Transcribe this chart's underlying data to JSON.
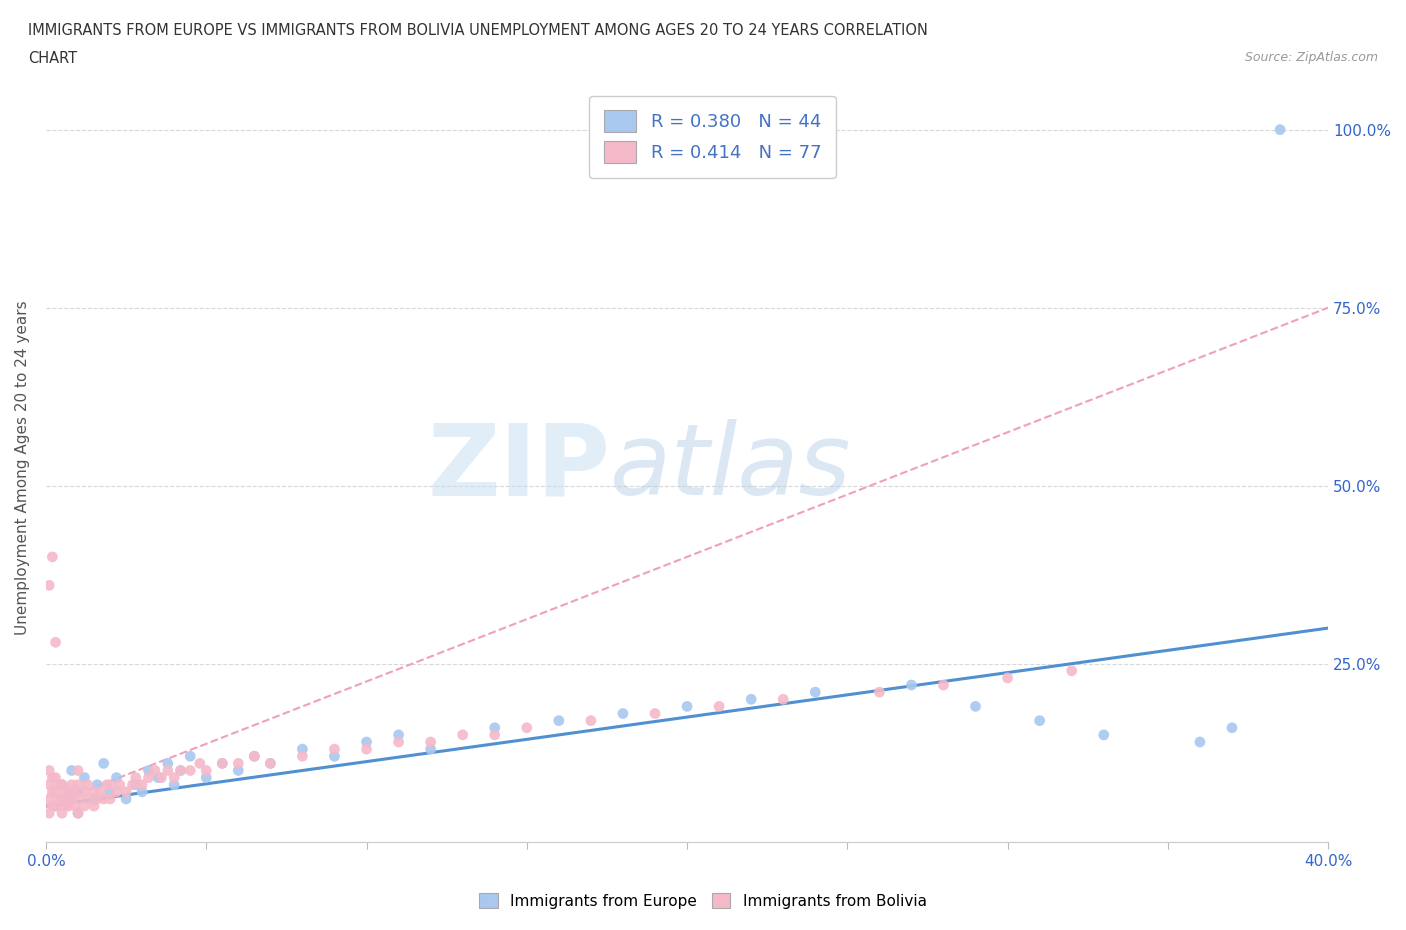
{
  "title_line1": "IMMIGRANTS FROM EUROPE VS IMMIGRANTS FROM BOLIVIA UNEMPLOYMENT AMONG AGES 20 TO 24 YEARS CORRELATION",
  "title_line2": "CHART",
  "source_text": "Source: ZipAtlas.com",
  "ylabel": "Unemployment Among Ages 20 to 24 years",
  "xlim": [
    0.0,
    0.4
  ],
  "ylim": [
    0.0,
    1.05
  ],
  "xtick_positions": [
    0.0,
    0.05,
    0.1,
    0.15,
    0.2,
    0.25,
    0.3,
    0.35,
    0.4
  ],
  "ytick_positions": [
    0.0,
    0.25,
    0.5,
    0.75,
    1.0
  ],
  "xtick_labels": [
    "0.0%",
    "",
    "",
    "",
    "",
    "",
    "",
    "",
    "40.0%"
  ],
  "ytick_labels_right": [
    "",
    "25.0%",
    "50.0%",
    "75.0%",
    "100.0%"
  ],
  "europe_R": 0.38,
  "europe_N": 44,
  "bolivia_R": 0.414,
  "bolivia_N": 77,
  "europe_color": "#a8c8f0",
  "bolivia_color": "#f5b8c8",
  "europe_line_color": "#5090d0",
  "bolivia_line_color": "#f0a0b8",
  "watermark_zip_color": "#c8dff5",
  "watermark_atlas_color": "#b8d4e8",
  "background_color": "#ffffff",
  "grid_color": "#d8d8d8",
  "tick_label_color": "#3366cc",
  "ylabel_color": "#555555",
  "title_color": "#333333",
  "source_color": "#999999",
  "legend_text_color": "#4472c4",
  "eu_scatter_x": [
    0.003,
    0.005,
    0.007,
    0.008,
    0.01,
    0.01,
    0.012,
    0.015,
    0.016,
    0.018,
    0.02,
    0.022,
    0.025,
    0.028,
    0.03,
    0.032,
    0.035,
    0.038,
    0.04,
    0.042,
    0.045,
    0.05,
    0.055,
    0.06,
    0.065,
    0.07,
    0.08,
    0.09,
    0.1,
    0.11,
    0.12,
    0.14,
    0.16,
    0.18,
    0.2,
    0.22,
    0.24,
    0.27,
    0.29,
    0.31,
    0.33,
    0.36,
    0.37,
    0.385
  ],
  "eu_scatter_y": [
    0.05,
    0.08,
    0.06,
    0.1,
    0.04,
    0.07,
    0.09,
    0.06,
    0.08,
    0.11,
    0.07,
    0.09,
    0.06,
    0.08,
    0.07,
    0.1,
    0.09,
    0.11,
    0.08,
    0.1,
    0.12,
    0.09,
    0.11,
    0.1,
    0.12,
    0.11,
    0.13,
    0.12,
    0.14,
    0.15,
    0.13,
    0.16,
    0.17,
    0.18,
    0.19,
    0.2,
    0.21,
    0.22,
    0.19,
    0.17,
    0.15,
    0.14,
    0.16,
    1.0
  ],
  "bo_scatter_x": [
    0.001,
    0.001,
    0.001,
    0.001,
    0.001,
    0.002,
    0.002,
    0.002,
    0.002,
    0.003,
    0.003,
    0.003,
    0.003,
    0.004,
    0.004,
    0.005,
    0.005,
    0.005,
    0.006,
    0.006,
    0.007,
    0.007,
    0.008,
    0.008,
    0.009,
    0.009,
    0.01,
    0.01,
    0.01,
    0.01,
    0.012,
    0.012,
    0.013,
    0.013,
    0.015,
    0.015,
    0.016,
    0.017,
    0.018,
    0.019,
    0.02,
    0.02,
    0.022,
    0.023,
    0.025,
    0.027,
    0.028,
    0.03,
    0.032,
    0.034,
    0.036,
    0.038,
    0.04,
    0.042,
    0.045,
    0.048,
    0.05,
    0.055,
    0.06,
    0.065,
    0.07,
    0.08,
    0.09,
    0.1,
    0.11,
    0.12,
    0.13,
    0.14,
    0.15,
    0.17,
    0.19,
    0.21,
    0.23,
    0.26,
    0.28,
    0.3,
    0.32
  ],
  "bo_scatter_y": [
    0.04,
    0.06,
    0.08,
    0.1,
    0.36,
    0.05,
    0.07,
    0.09,
    0.4,
    0.05,
    0.07,
    0.09,
    0.28,
    0.06,
    0.08,
    0.04,
    0.06,
    0.08,
    0.05,
    0.07,
    0.05,
    0.07,
    0.06,
    0.08,
    0.05,
    0.07,
    0.04,
    0.06,
    0.08,
    0.1,
    0.05,
    0.07,
    0.06,
    0.08,
    0.05,
    0.07,
    0.06,
    0.07,
    0.06,
    0.08,
    0.06,
    0.08,
    0.07,
    0.08,
    0.07,
    0.08,
    0.09,
    0.08,
    0.09,
    0.1,
    0.09,
    0.1,
    0.09,
    0.1,
    0.1,
    0.11,
    0.1,
    0.11,
    0.11,
    0.12,
    0.11,
    0.12,
    0.13,
    0.13,
    0.14,
    0.14,
    0.15,
    0.15,
    0.16,
    0.17,
    0.18,
    0.19,
    0.2,
    0.21,
    0.22,
    0.23,
    0.24
  ]
}
